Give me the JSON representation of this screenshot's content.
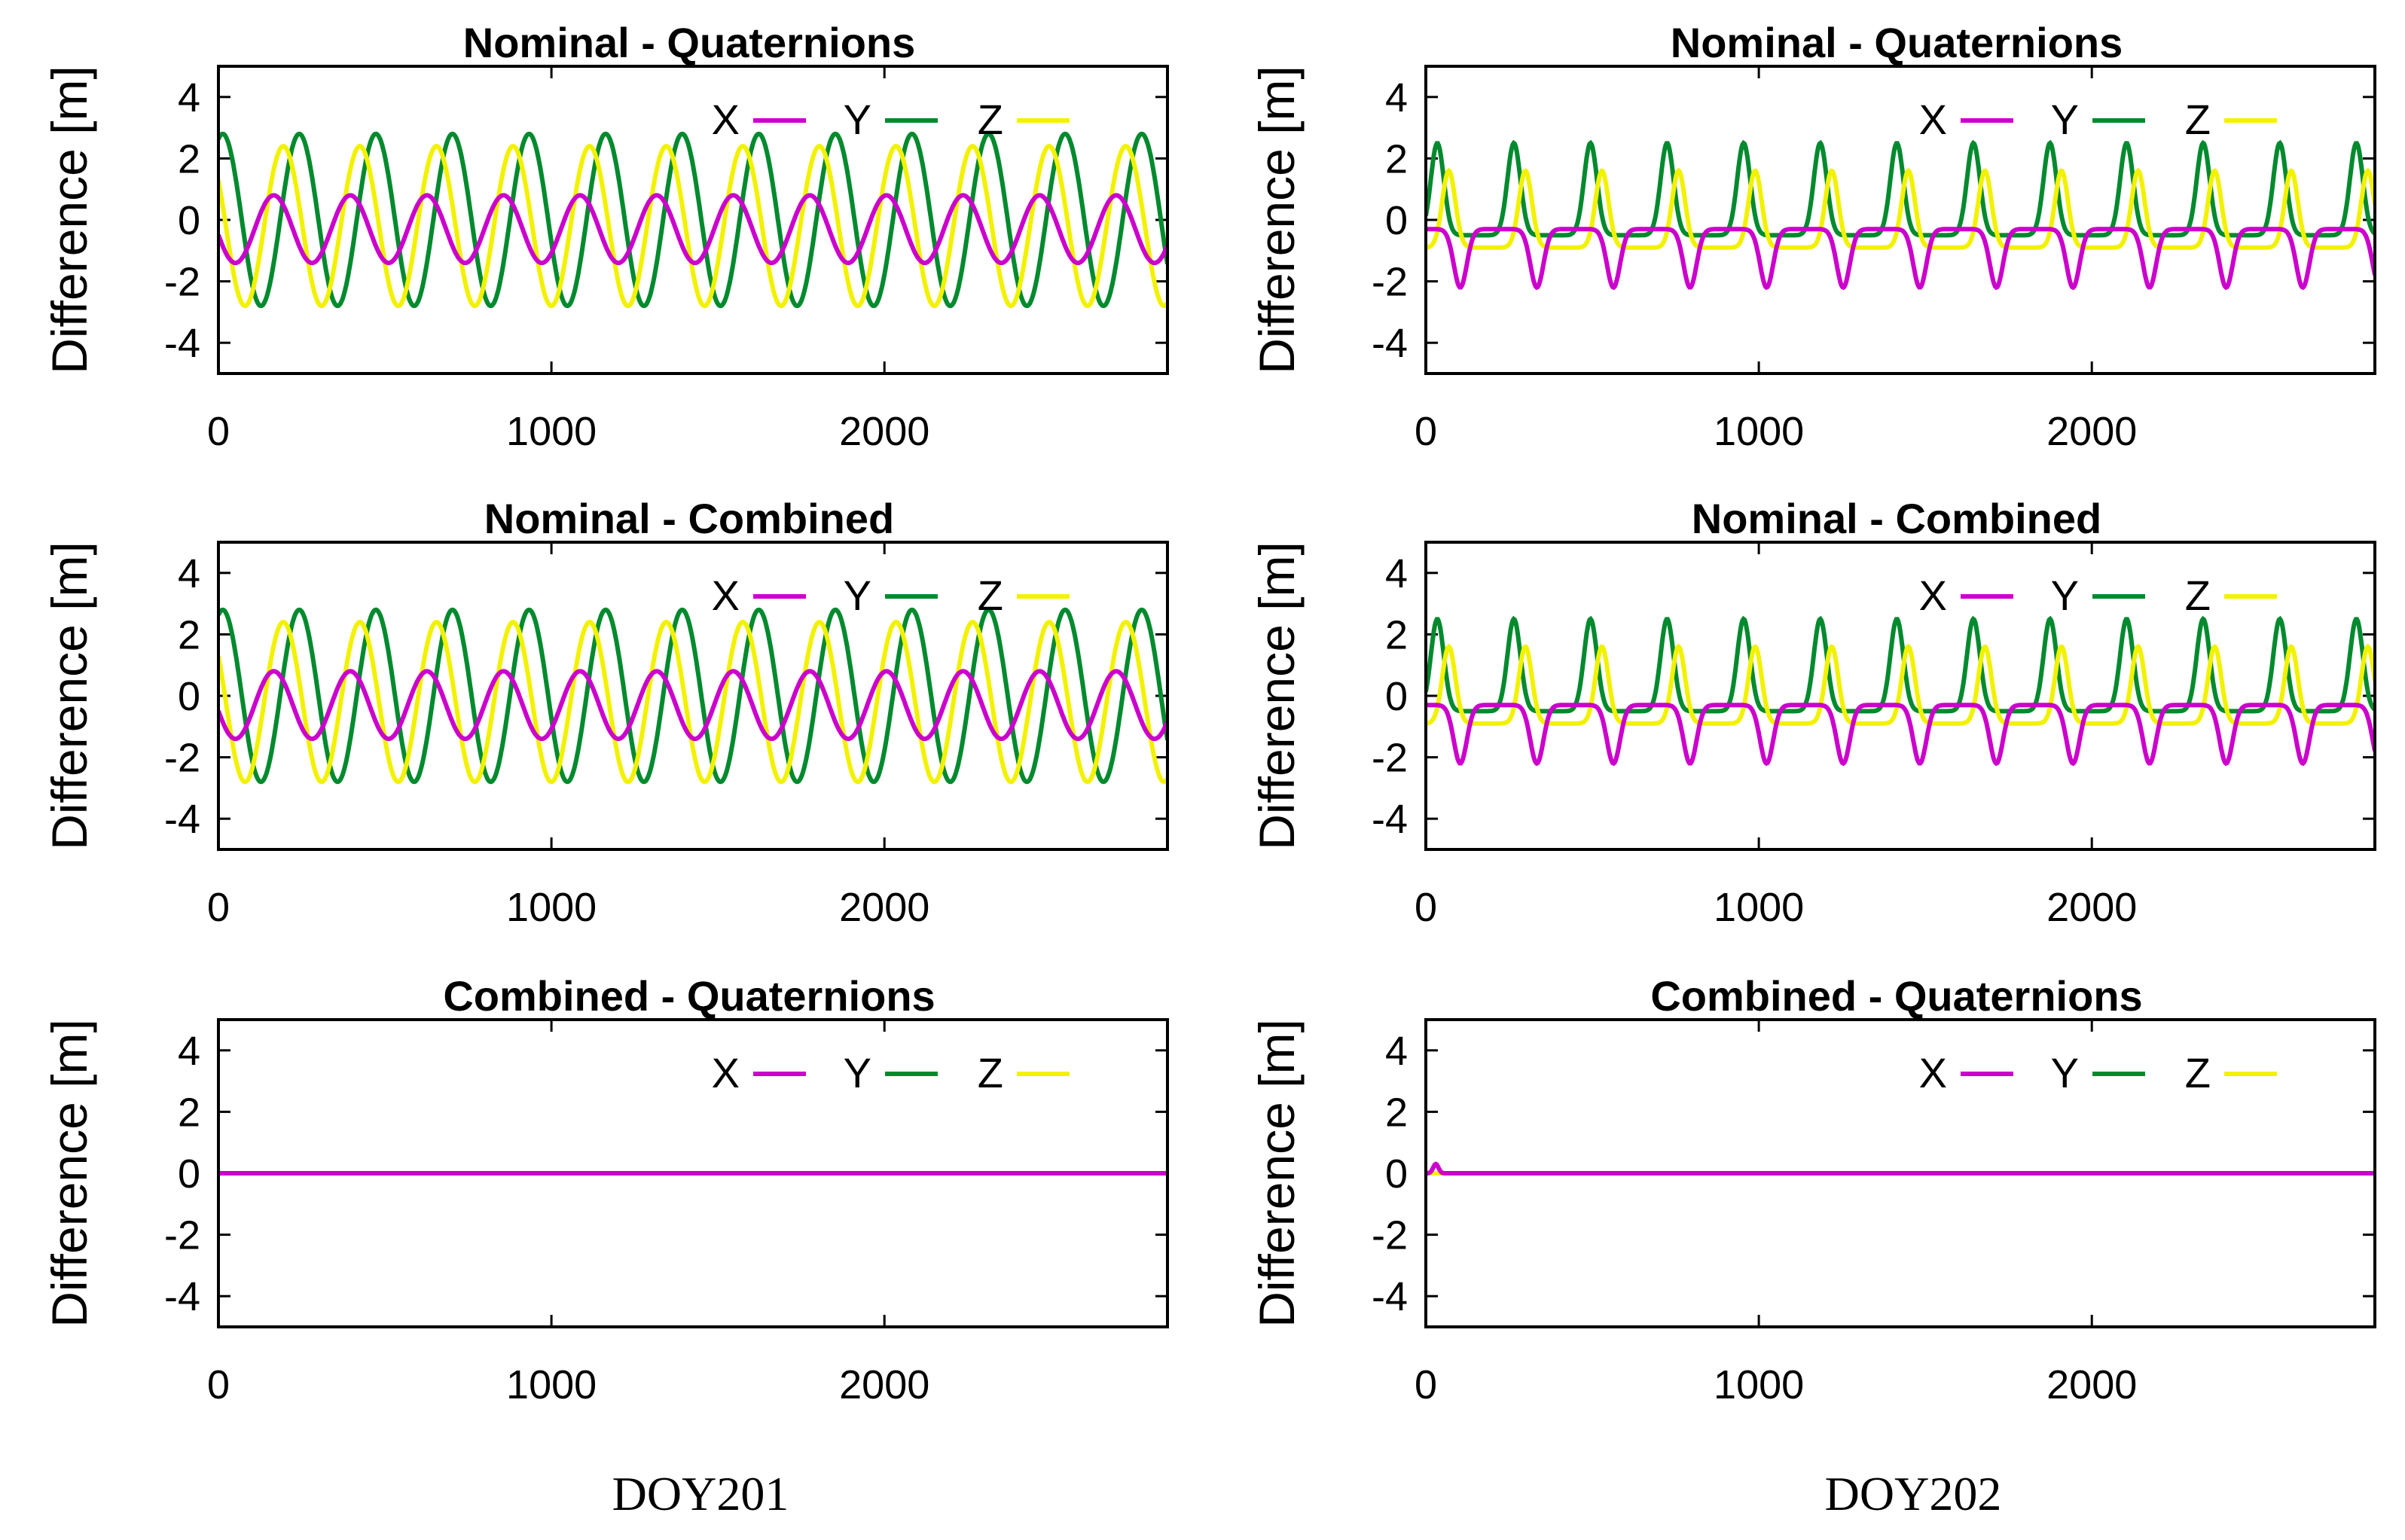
{
  "colors": {
    "X": "#cc00cc",
    "Y": "#008a2e",
    "Z": "#f2f200"
  },
  "columns": [
    {
      "label": "DOY201"
    },
    {
      "label": "DOY202"
    }
  ],
  "chart_data": [
    {
      "type": "line",
      "title": "Nominal - Quaternions",
      "day": "DOY201",
      "xlabel": "",
      "ylabel": "Difference [m]",
      "xlim": [
        0,
        2850
      ],
      "ylim": [
        -5,
        5
      ],
      "xticks": [
        "0",
        "1000",
        "2000"
      ],
      "yticks": [
        "4",
        "2",
        "0",
        "-2",
        "-4"
      ],
      "legend": [
        "X",
        "Y",
        "Z"
      ],
      "legend_position": "top-right",
      "series": [
        {
          "name": "X",
          "model": "sine",
          "offset": -0.3,
          "amplitude": 1.1,
          "period": 230,
          "phase_deg": 190
        },
        {
          "name": "Y",
          "model": "sine",
          "offset": 0.0,
          "amplitude": 2.8,
          "period": 230,
          "phase_deg": 70
        },
        {
          "name": "Z",
          "model": "sine",
          "offset": -0.2,
          "amplitude": 2.6,
          "period": 230,
          "phase_deg": 145
        }
      ]
    },
    {
      "type": "line",
      "title": "Nominal - Quaternions",
      "day": "DOY202",
      "xlabel": "",
      "ylabel": "Difference [m]",
      "xlim": [
        0,
        2850
      ],
      "ylim": [
        -5,
        5
      ],
      "xticks": [
        "0",
        "1000",
        "2000"
      ],
      "yticks": [
        "4",
        "2",
        "0",
        "-2",
        "-4"
      ],
      "legend": [
        "X",
        "Y",
        "Z"
      ],
      "legend_position": "top-right",
      "series": [
        {
          "name": "X",
          "model": "pulse",
          "base": -0.3,
          "amplitude": -1.9,
          "period": 230,
          "center_frac": 0.45
        },
        {
          "name": "Y",
          "model": "pulse",
          "base": -0.5,
          "amplitude": 3.0,
          "period": 230,
          "center_frac": 0.15
        },
        {
          "name": "Z",
          "model": "pulse",
          "base": -0.9,
          "amplitude": 2.5,
          "period": 230,
          "center_frac": 0.3
        }
      ]
    },
    {
      "type": "line",
      "title": "Nominal - Combined",
      "day": "DOY201",
      "xlabel": "",
      "ylabel": "Difference [m]",
      "xlim": [
        0,
        2850
      ],
      "ylim": [
        -5,
        5
      ],
      "xticks": [
        "0",
        "1000",
        "2000"
      ],
      "yticks": [
        "4",
        "2",
        "0",
        "-2",
        "-4"
      ],
      "legend": [
        "X",
        "Y",
        "Z"
      ],
      "legend_position": "top-right",
      "series": [
        {
          "name": "X",
          "model": "sine",
          "offset": -0.3,
          "amplitude": 1.1,
          "period": 230,
          "phase_deg": 190
        },
        {
          "name": "Y",
          "model": "sine",
          "offset": 0.0,
          "amplitude": 2.8,
          "period": 230,
          "phase_deg": 70
        },
        {
          "name": "Z",
          "model": "sine",
          "offset": -0.2,
          "amplitude": 2.6,
          "period": 230,
          "phase_deg": 145
        }
      ]
    },
    {
      "type": "line",
      "title": "Nominal - Combined",
      "day": "DOY202",
      "xlabel": "",
      "ylabel": "Difference [m]",
      "xlim": [
        0,
        2850
      ],
      "ylim": [
        -5,
        5
      ],
      "xticks": [
        "0",
        "1000",
        "2000"
      ],
      "yticks": [
        "4",
        "2",
        "0",
        "-2",
        "-4"
      ],
      "legend": [
        "X",
        "Y",
        "Z"
      ],
      "legend_position": "top-right",
      "series": [
        {
          "name": "X",
          "model": "pulse",
          "base": -0.3,
          "amplitude": -1.9,
          "period": 230,
          "center_frac": 0.45
        },
        {
          "name": "Y",
          "model": "pulse",
          "base": -0.5,
          "amplitude": 3.0,
          "period": 230,
          "center_frac": 0.15
        },
        {
          "name": "Z",
          "model": "pulse",
          "base": -0.9,
          "amplitude": 2.5,
          "period": 230,
          "center_frac": 0.3
        }
      ]
    },
    {
      "type": "line",
      "title": "Combined - Quaternions",
      "day": "DOY201",
      "xlabel": "",
      "ylabel": "Difference [m]",
      "xlim": [
        0,
        2850
      ],
      "ylim": [
        -5,
        5
      ],
      "xticks": [
        "0",
        "1000",
        "2000"
      ],
      "yticks": [
        "4",
        "2",
        "0",
        "-2",
        "-4"
      ],
      "legend": [
        "X",
        "Y",
        "Z"
      ],
      "legend_position": "top-right",
      "series": [
        {
          "name": "X",
          "model": "flat",
          "value": 0.0
        },
        {
          "name": "Y",
          "model": "flat",
          "value": 0.0
        },
        {
          "name": "Z",
          "model": "flat",
          "value": 0.0
        }
      ]
    },
    {
      "type": "line",
      "title": "Combined - Quaternions",
      "day": "DOY202",
      "xlabel": "",
      "ylabel": "Difference [m]",
      "xlim": [
        0,
        2850
      ],
      "ylim": [
        -5,
        5
      ],
      "xticks": [
        "0",
        "1000",
        "2000"
      ],
      "yticks": [
        "4",
        "2",
        "0",
        "-2",
        "-4"
      ],
      "legend": [
        "X",
        "Y",
        "Z"
      ],
      "legend_position": "top-right",
      "series": [
        {
          "name": "X",
          "model": "flat",
          "value": 0.0,
          "spike": {
            "x": 30,
            "value": 0.3
          }
        },
        {
          "name": "Y",
          "model": "flat",
          "value": 0.0
        },
        {
          "name": "Z",
          "model": "flat",
          "value": 0.0
        }
      ]
    }
  ]
}
